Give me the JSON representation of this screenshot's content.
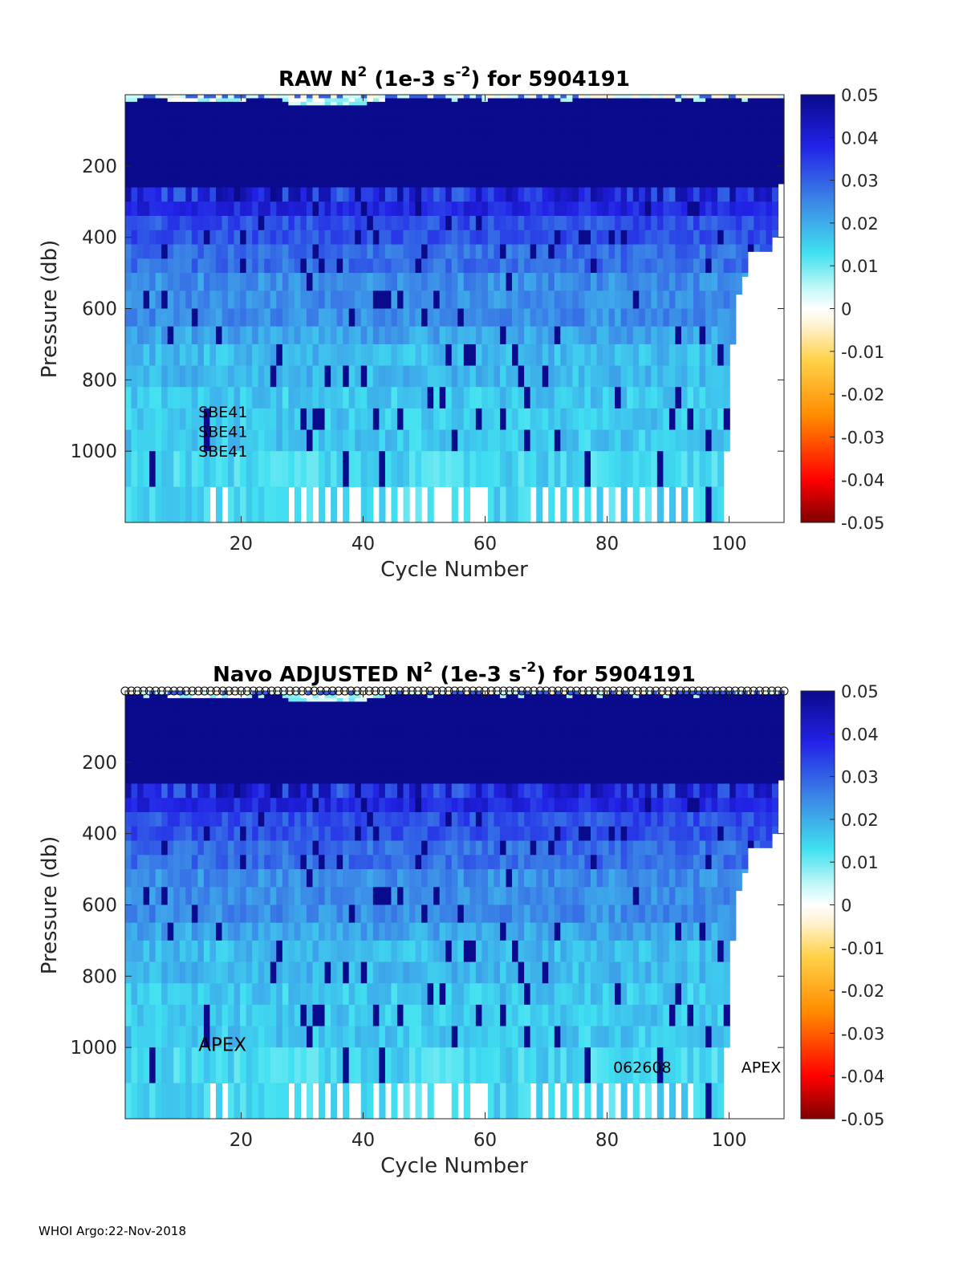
{
  "footer": "WHOI Argo:22-Nov-2018",
  "colors": {
    "stops": [
      "#7f0000",
      "#ff0000",
      "#ff8c00",
      "#ffd24a",
      "#fff2d2",
      "#ffffff",
      "#bff7f7",
      "#40e0f0",
      "#3c87e6",
      "#2222e6",
      "#0a0a8c"
    ],
    "deep_navy": "#0a0a8c",
    "axis": "#262626"
  },
  "chart_data": [
    {
      "type": "heatmap",
      "id": "raw",
      "title_parts": [
        "RAW N",
        "2",
        " (1e-3 s",
        "-2",
        ") for 5904191"
      ],
      "xlabel": "Cycle Number",
      "ylabel": "Pressure (db)",
      "xlim": [
        1,
        109
      ],
      "ylim": [
        1200,
        0
      ],
      "xticks": [
        20,
        40,
        60,
        80,
        100
      ],
      "yticks": [
        200,
        400,
        600,
        800,
        1000
      ],
      "colorbar": {
        "clim": [
          -0.05,
          0.05
        ],
        "ticks": [
          "0.05",
          "0.04",
          "0.03",
          "0.02",
          "0.01",
          "0",
          "-0.01",
          "-0.02",
          "-0.03",
          "-0.04",
          "-0.05"
        ]
      },
      "last_cycle": 109,
      "annotations": [
        {
          "text": "SBE41",
          "x": 13,
          "y": 905
        },
        {
          "text": "SBE41",
          "x": 13,
          "y": 960
        },
        {
          "text": "SBE41",
          "x": 13,
          "y": 1015
        }
      ],
      "markers": false
    },
    {
      "type": "heatmap",
      "id": "adjusted",
      "title_parts": [
        "Navo  ADJUSTED N",
        "2",
        " (1e-3 s",
        "-2",
        ") for 5904191"
      ],
      "xlabel": "Cycle Number",
      "ylabel": "Pressure (db)",
      "xlim": [
        1,
        109
      ],
      "ylim": [
        1200,
        0
      ],
      "xticks": [
        20,
        40,
        60,
        80,
        100
      ],
      "yticks": [
        200,
        400,
        600,
        800,
        1000
      ],
      "colorbar": {
        "clim": [
          -0.05,
          0.05
        ],
        "ticks": [
          "0.05",
          "0.04",
          "0.03",
          "0.02",
          "0.01",
          "0",
          "-0.01",
          "-0.02",
          "-0.03",
          "-0.04",
          "-0.05"
        ]
      },
      "last_cycle": 109,
      "annotations": [
        {
          "text": "APEX",
          "x": 13,
          "y": 1010,
          "big": true
        },
        {
          "text": "062608",
          "x": 81,
          "y": 1070
        },
        {
          "text": "APEX",
          "x": 102,
          "y": 1070
        }
      ],
      "markers": true
    }
  ]
}
